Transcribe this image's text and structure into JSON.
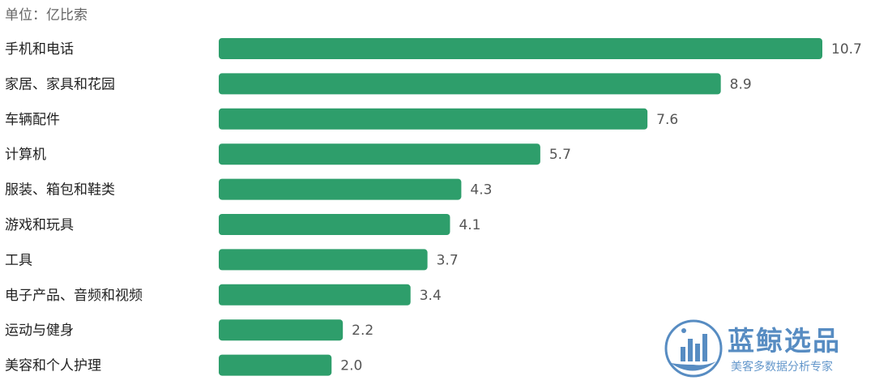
{
  "unit_label": "单位：亿比索",
  "colors": {
    "bar": "#2e9e6b",
    "watermark": "#3a78b8"
  },
  "watermark": {
    "title": "蓝鲸选品",
    "subtitle": "美客多数据分析专家",
    "icon": "whale-bar-chart-logo"
  },
  "chart_data": {
    "type": "bar",
    "orientation": "horizontal",
    "title": "",
    "xlabel": "",
    "ylabel": "",
    "unit": "单位：亿比索",
    "categories": [
      "手机和电话",
      "家居、家具和花园",
      "车辆配件",
      "计算机",
      "服装、箱包和鞋类",
      "游戏和玩具",
      "工具",
      "电子产品、音频和视频",
      "运动与健身",
      "美容和个人护理"
    ],
    "values": [
      10.7,
      8.9,
      7.6,
      5.7,
      4.3,
      4.1,
      3.7,
      3.4,
      2.2,
      2.0
    ],
    "value_labels": [
      "10.7",
      "8.9",
      "7.6",
      "5.7",
      "4.3",
      "4.1",
      "3.7",
      "3.4",
      "2.2",
      "2.0"
    ],
    "xlim": [
      0,
      10.7
    ],
    "grid": false,
    "legend": "none"
  }
}
